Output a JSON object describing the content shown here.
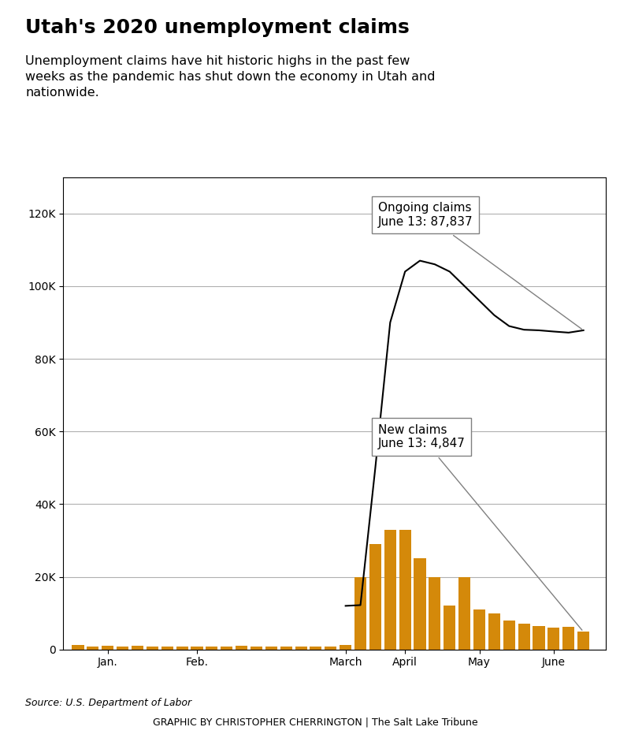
{
  "chart_data": {
    "type": "bar",
    "title": "Utah's 2020 unemployment claims",
    "subtitle": "Unemployment claims have hit historic highs in the past few\nweeks as the pandemic has shut down the economy in Utah and\nnationwide.",
    "source": "Source: U.S. Department of Labor",
    "credit": "GRAPHIC BY CHRISTOPHER CHERRINGTON | The Salt Lake Tribune",
    "x": [
      1,
      2,
      3,
      4,
      5,
      6,
      7,
      8,
      9,
      10,
      11,
      12,
      13,
      14,
      15,
      16,
      17,
      18,
      19,
      20,
      21,
      22,
      23,
      24,
      25,
      26,
      27,
      28,
      29,
      30,
      31,
      32,
      33,
      34,
      35
    ],
    "series": [
      {
        "type": "bar",
        "color": "#D4890A",
        "values": [
          1200,
          900,
          1100,
          800,
          1000,
          900,
          800,
          900,
          700,
          800,
          900,
          1000,
          900,
          800,
          700,
          800,
          900,
          800,
          1200,
          20000,
          29000,
          33000,
          33000,
          25000,
          20000,
          12000,
          20000,
          11000,
          10000,
          8000,
          7000,
          6500,
          6000,
          6200,
          4847
        ]
      },
      {
        "type": "line",
        "color": "#000000",
        "values": [
          null,
          null,
          null,
          null,
          null,
          null,
          null,
          null,
          null,
          null,
          null,
          null,
          null,
          null,
          null,
          null,
          null,
          null,
          12000,
          12200,
          50000,
          90000,
          104000,
          107000,
          106000,
          104000,
          100000,
          96000,
          92000,
          89000,
          88000,
          87837,
          87500,
          87200,
          87837
        ]
      }
    ],
    "xlim": [
      0,
      36.5
    ],
    "xticks": [
      {
        "value": 3,
        "label": "Jan."
      },
      {
        "value": 9,
        "label": "Feb."
      },
      {
        "value": 19,
        "label": "March"
      },
      {
        "value": 23,
        "label": "April"
      },
      {
        "value": 28,
        "label": "May"
      },
      {
        "value": 33,
        "label": "June"
      }
    ],
    "ylim": [
      0,
      130000
    ],
    "yticks": [
      0,
      {
        "value": 20000,
        "label": "20K"
      },
      {
        "value": 40000,
        "label": "40K"
      },
      {
        "value": 60000,
        "label": "60K"
      },
      {
        "value": 80000,
        "label": "80K"
      },
      {
        "value": 100000,
        "label": "100K"
      },
      {
        "value": 120000,
        "label": "120K"
      }
    ],
    "grid": true,
    "annotations": [
      {
        "label": "Ongoing claims",
        "text": "June 13: 87,837",
        "x": 35,
        "y": 87837
      },
      {
        "label": "New claims",
        "text": "June 13: 4,847",
        "x": 35,
        "y": 4847
      }
    ]
  }
}
